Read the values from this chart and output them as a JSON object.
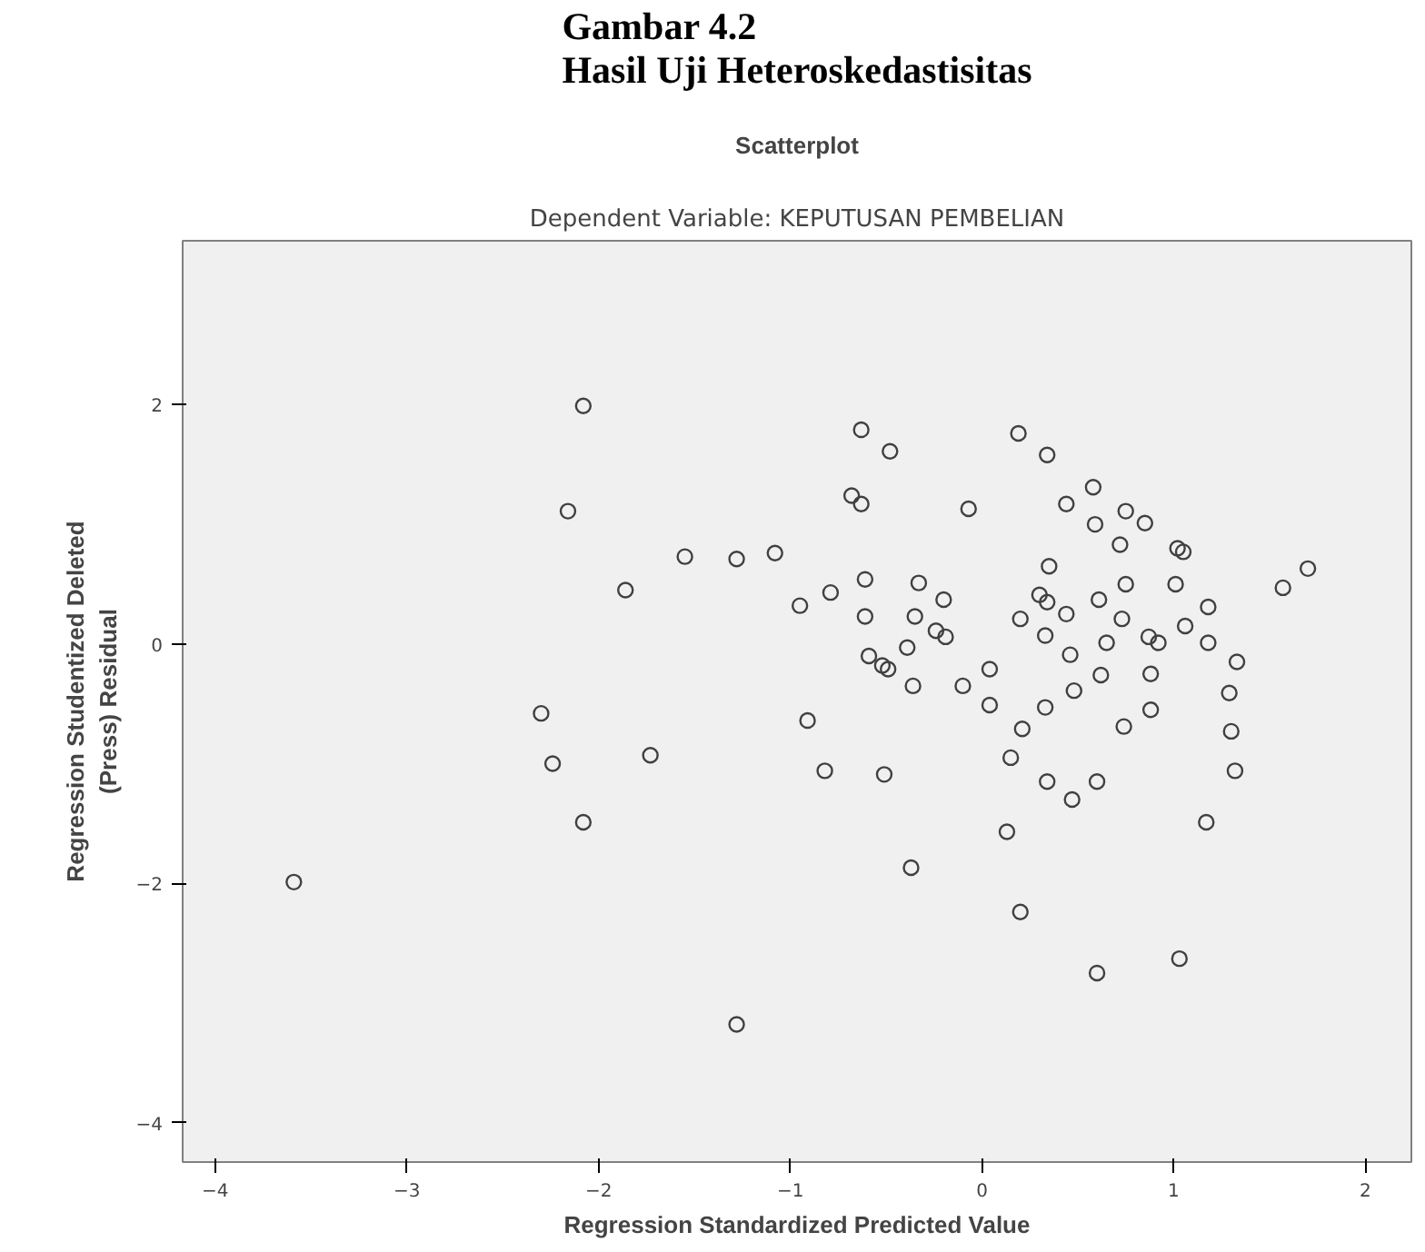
{
  "chart_data": {
    "type": "scatter",
    "title": "Gambar 4.2\nHasil Uji Heteroskedastisitas",
    "subtitle": "Scatterplot",
    "annotations": [
      "Dependent Variable: KEPUTUSAN PEMBELIAN"
    ],
    "xlabel": "Regression Standardized Predicted Value",
    "ylabel": "Regression Studentized Deleted\n(Press) Residual",
    "xlim": [
      -4.17,
      2.24
    ],
    "ylim": [
      -4.33,
      3.37
    ],
    "xticks": [
      -4,
      -3,
      -2,
      -1,
      0,
      1,
      2
    ],
    "yticks": [
      -4,
      -2,
      0,
      2
    ],
    "grid": false,
    "marker": "circle",
    "series": [
      {
        "color": "#404040",
        "x": [
          -2.08,
          -2.16,
          -1.86,
          -2.3,
          -2.24,
          -2.08,
          -3.59,
          -1.55,
          -1.28,
          -1.08,
          -1.73,
          -1.28,
          -0.95,
          -0.79,
          -0.91,
          -0.82,
          -0.63,
          -0.48,
          -0.68,
          -0.63,
          -0.07,
          -0.61,
          -0.61,
          -0.59,
          -0.52,
          -0.49,
          -0.51,
          -0.33,
          -0.35,
          -0.39,
          -0.36,
          -0.37,
          -0.2,
          -0.24,
          -0.19,
          -0.1,
          0.04,
          0.04,
          0.19,
          0.2,
          0.21,
          0.15,
          0.13,
          0.2,
          0.34,
          0.44,
          0.58,
          0.59,
          0.75,
          0.85,
          0.72,
          1.02,
          1.05,
          1.57,
          1.7,
          0.35,
          0.3,
          0.34,
          0.44,
          0.33,
          0.46,
          0.61,
          0.65,
          0.75,
          0.73,
          0.87,
          0.92,
          1.01,
          1.06,
          1.18,
          1.18,
          1.33,
          1.29,
          1.3,
          1.32,
          1.17,
          0.62,
          0.88,
          0.88,
          0.74,
          0.48,
          0.33,
          0.34,
          0.47,
          0.6,
          0.6,
          1.03
        ],
        "values": [
          1.99,
          1.11,
          0.45,
          -0.58,
          -1.0,
          -1.49,
          -1.99,
          0.73,
          0.71,
          0.76,
          -0.93,
          -3.18,
          0.32,
          0.43,
          -0.64,
          -1.06,
          1.79,
          1.61,
          1.24,
          1.17,
          1.13,
          0.54,
          0.23,
          -0.1,
          -0.18,
          -0.21,
          -1.09,
          0.51,
          0.23,
          -0.03,
          -0.35,
          -1.87,
          0.37,
          0.11,
          0.06,
          -0.35,
          -0.21,
          -0.51,
          1.76,
          0.21,
          -0.71,
          -0.95,
          -1.57,
          -2.24,
          1.58,
          1.17,
          1.31,
          1.0,
          1.11,
          1.01,
          0.83,
          0.8,
          0.77,
          0.47,
          0.63,
          0.65,
          0.41,
          0.35,
          0.25,
          0.07,
          -0.09,
          0.37,
          0.01,
          0.5,
          0.21,
          0.06,
          0.01,
          0.5,
          0.15,
          0.31,
          0.01,
          -0.15,
          -0.41,
          -0.73,
          -1.06,
          -1.49,
          -0.26,
          -0.25,
          -0.55,
          -0.69,
          -0.39,
          -0.53,
          -1.15,
          -1.3,
          -1.15,
          -2.75,
          -2.63
        ]
      }
    ]
  }
}
